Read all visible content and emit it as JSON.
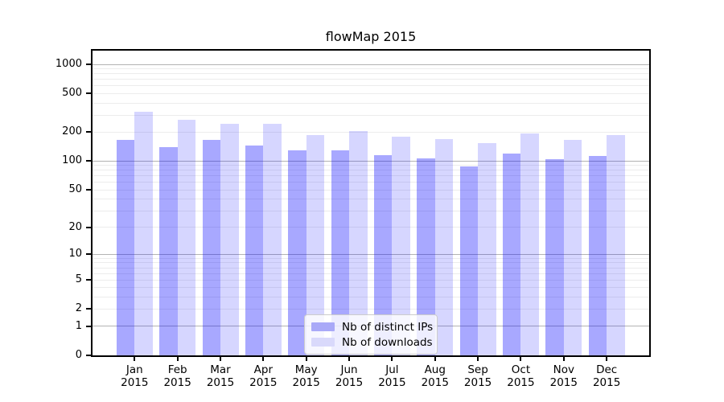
{
  "title": "flowMap 2015",
  "colors": {
    "bar_distinct_ips": "rgba(0,0,255,0.34)",
    "bar_downloads": "rgba(0,0,255,0.16)",
    "legend_swatch_ips": "#a9a9f8",
    "legend_swatch_downloads": "#d9d9fb",
    "grid_minor": "#ececec",
    "grid_major": "#b3b3b3",
    "spine": "#000000",
    "background": "#ffffff"
  },
  "chart_data": {
    "type": "bar",
    "title": "flowMap 2015",
    "categories": [
      "Jan",
      "Feb",
      "Mar",
      "Apr",
      "May",
      "Jun",
      "Jul",
      "Aug",
      "Sep",
      "Oct",
      "Nov",
      "Dec"
    ],
    "category_year": "2015",
    "series": [
      {
        "name": "Nb of distinct IPs",
        "color": "rgba(0,0,255,0.34)",
        "legend_color": "#a9a9f8",
        "values": [
          167,
          140,
          167,
          145,
          130,
          129,
          116,
          107,
          88,
          120,
          105,
          112
        ]
      },
      {
        "name": "Nb of downloads",
        "color": "rgba(0,0,255,0.16)",
        "legend_color": "#d9d9fb",
        "values": [
          325,
          270,
          242,
          242,
          188,
          204,
          179,
          168,
          153,
          193,
          165,
          187
        ]
      }
    ],
    "y_axis": {
      "scale": "log1p",
      "ticks": [
        0,
        1,
        2,
        5,
        10,
        20,
        50,
        100,
        200,
        500,
        1000
      ],
      "top": 1389,
      "major_gridlines": [
        1,
        10,
        100,
        1000
      ]
    },
    "legend_position": "lower center",
    "grid": true
  }
}
